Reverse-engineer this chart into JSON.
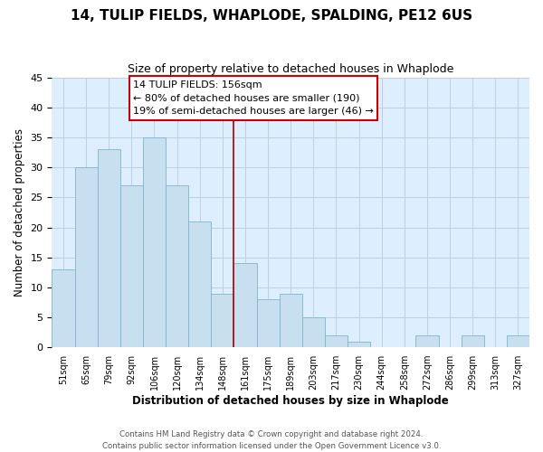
{
  "title": "14, TULIP FIELDS, WHAPLODE, SPALDING, PE12 6US",
  "subtitle": "Size of property relative to detached houses in Whaplode",
  "xlabel": "Distribution of detached houses by size in Whaplode",
  "ylabel": "Number of detached properties",
  "footer_line1": "Contains HM Land Registry data © Crown copyright and database right 2024.",
  "footer_line2": "Contains public sector information licensed under the Open Government Licence v3.0.",
  "bin_labels": [
    "51sqm",
    "65sqm",
    "79sqm",
    "92sqm",
    "106sqm",
    "120sqm",
    "134sqm",
    "148sqm",
    "161sqm",
    "175sqm",
    "189sqm",
    "203sqm",
    "217sqm",
    "230sqm",
    "244sqm",
    "258sqm",
    "272sqm",
    "286sqm",
    "299sqm",
    "313sqm",
    "327sqm"
  ],
  "bar_heights": [
    13,
    30,
    33,
    27,
    35,
    27,
    21,
    9,
    14,
    8,
    9,
    5,
    2,
    1,
    0,
    0,
    2,
    0,
    2,
    0,
    2
  ],
  "bar_color": "#c8dff0",
  "bar_edge_color": "#7fb3d3",
  "vline_x": 8,
  "vline_color": "#aa0000",
  "ylim": [
    0,
    45
  ],
  "yticks": [
    0,
    5,
    10,
    15,
    20,
    25,
    30,
    35,
    40,
    45
  ],
  "annotation_title": "14 TULIP FIELDS: 156sqm",
  "annotation_line1": "← 80% of detached houses are smaller (190)",
  "annotation_line2": "19% of semi-detached houses are larger (46) →",
  "background_color": "#ffffff",
  "axes_bg_color": "#ddeeff",
  "grid_color": "#c0cfe0"
}
